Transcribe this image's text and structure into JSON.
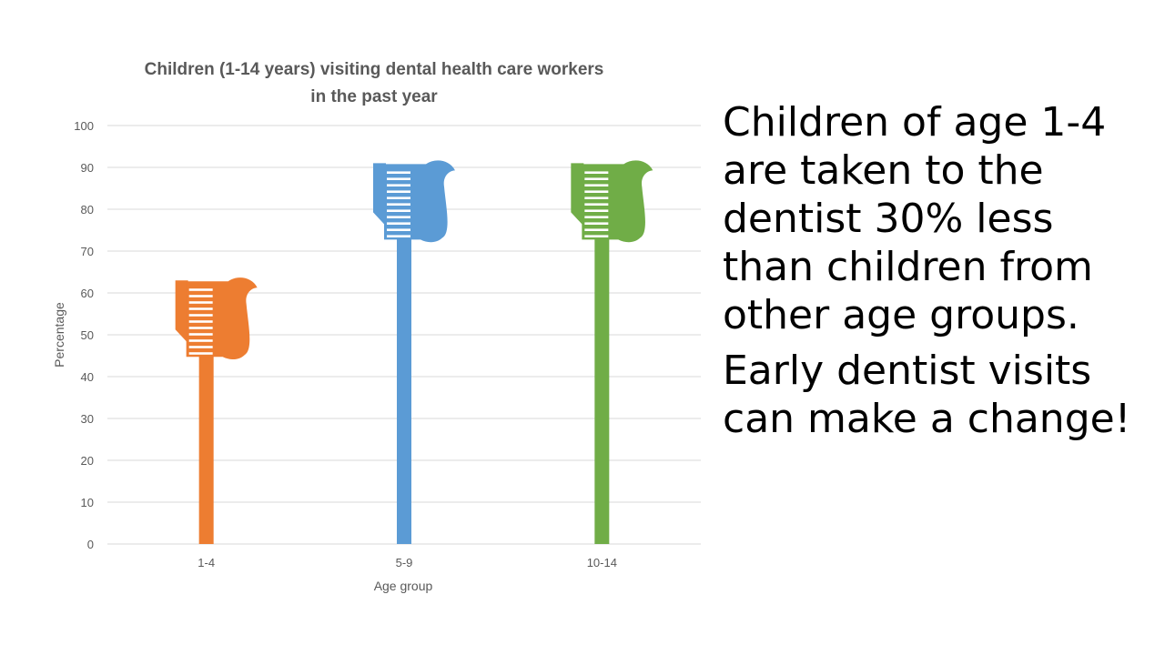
{
  "slide": {
    "callout": [
      "Children of age 1-4 are taken to the dentist 30% less than children from other age groups.",
      "Early dentist visits can make a change!"
    ]
  },
  "chart_data": {
    "type": "bar",
    "title": "Children (1-14 years) visiting dental health care workers in the past year",
    "title_lines": [
      "Children (1-14 years) visiting dental health care workers",
      "in the past year"
    ],
    "xlabel": "Age group",
    "ylabel": "Percentage",
    "categories": [
      "1-4",
      "5-9",
      "10-14"
    ],
    "values": [
      63,
      91,
      91
    ],
    "colors": [
      "#ED7D31",
      "#5B9BD5",
      "#70AD47"
    ],
    "bar_style": "toothbrush-icon",
    "ylim": [
      0,
      100
    ],
    "yticks": [
      0,
      10,
      20,
      30,
      40,
      50,
      60,
      70,
      80,
      90,
      100
    ],
    "grid": true,
    "legend": "none"
  }
}
